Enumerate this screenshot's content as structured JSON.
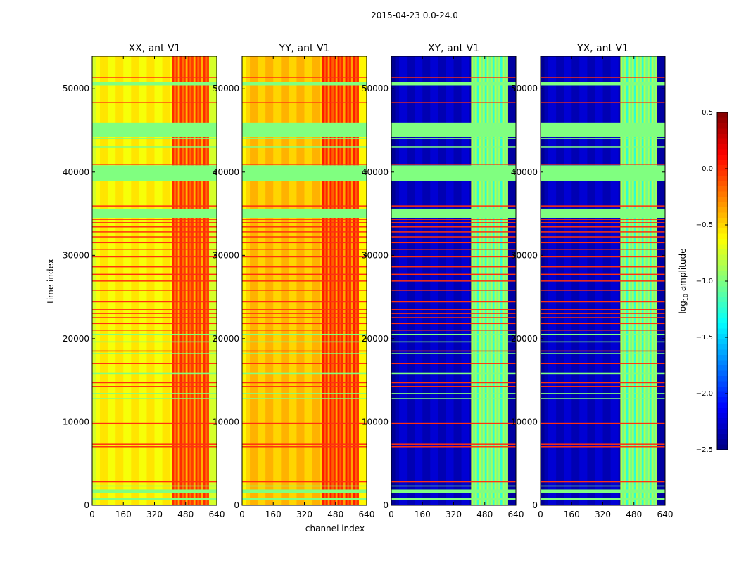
{
  "chart_data": {
    "type": "heatmap",
    "title": "2015-04-23 0.0-24.0",
    "xlabel": "channel index",
    "ylabel": "time index",
    "xlim": [
      0,
      640
    ],
    "ylim": [
      0,
      53900
    ],
    "xticks": [
      "0",
      "160",
      "320",
      "480",
      "640"
    ],
    "yticks": [
      "0",
      "10000",
      "20000",
      "30000",
      "40000",
      "50000"
    ],
    "colorbar": {
      "label": "log10 amplitude",
      "range": [
        -2.5,
        0.5
      ],
      "ticks": [
        "0.5",
        "0.0",
        "−0.5",
        "−1.0",
        "−1.5",
        "−2.0",
        "−2.5"
      ],
      "colormap": "jet"
    },
    "panels": [
      {
        "title": "XX, ant V1",
        "base": -0.6,
        "band_range": [
          410,
          600
        ],
        "band_level": -0.15,
        "edge_level": -0.75
      },
      {
        "title": "YY, ant V1",
        "base": -0.45,
        "band_range": [
          410,
          600
        ],
        "band_level": -0.1,
        "edge_level": -0.6
      },
      {
        "title": "XY, ant V1",
        "base": -2.3,
        "band_range": [
          410,
          600
        ],
        "band_level": -1.0,
        "edge_level": -2.4
      },
      {
        "title": "YX, ant V1",
        "base": -2.3,
        "band_range": [
          410,
          600
        ],
        "band_level": -1.0,
        "edge_level": -2.4
      }
    ],
    "flagged_rows_red": [
      51350,
      48300,
      40900,
      35900,
      34300,
      33900,
      33400,
      32800,
      32200,
      31500,
      30700,
      29800,
      28600,
      27700,
      26900,
      25800,
      24400,
      23500,
      23000,
      22500,
      21800,
      21000,
      18500,
      17000,
      14700,
      14250,
      9800,
      7300,
      7000,
      2800
    ],
    "gap_bands_green": [
      [
        45900,
        44200
      ],
      [
        40800,
        38900
      ],
      [
        35600,
        34500
      ],
      [
        50800,
        50400
      ],
      [
        1900,
        1500
      ],
      [
        900,
        600
      ]
    ],
    "thin_green_rows": [
      44000,
      43000,
      20500,
      19600,
      18200,
      15800,
      13400,
      12800,
      2300
    ]
  }
}
